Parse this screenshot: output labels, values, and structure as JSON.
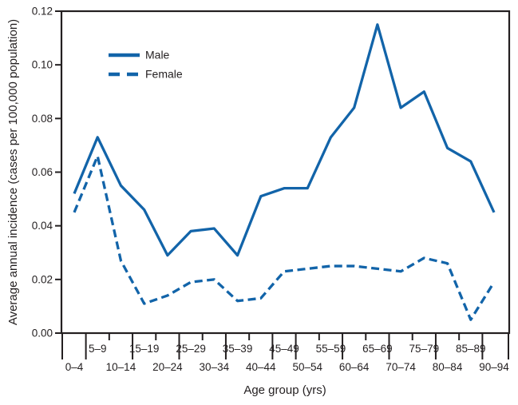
{
  "chart_data": {
    "type": "line",
    "title": "",
    "xlabel": "Age group (yrs)",
    "ylabel": "Average annual incidence (cases per 100,000 population)",
    "categories": [
      "0–4",
      "5–9",
      "10–14",
      "15–19",
      "20–24",
      "25–29",
      "30–34",
      "35–39",
      "40–44",
      "45–49",
      "50–54",
      "55–59",
      "60–64",
      "65–69",
      "70–74",
      "75–79",
      "80–84",
      "85–89",
      "90–94"
    ],
    "series": [
      {
        "name": "Male",
        "line_style": "solid",
        "values": [
          0.052,
          0.073,
          0.055,
          0.046,
          0.029,
          0.038,
          0.039,
          0.029,
          0.051,
          0.054,
          0.054,
          0.073,
          0.084,
          0.115,
          0.084,
          0.09,
          0.069,
          0.064,
          0.045
        ]
      },
      {
        "name": "Female",
        "line_style": "dashed",
        "values": [
          0.045,
          0.066,
          0.027,
          0.011,
          0.014,
          0.019,
          0.02,
          0.012,
          0.013,
          0.023,
          0.024,
          0.025,
          0.025,
          0.024,
          0.023,
          0.028,
          0.026,
          0.005,
          0.019
        ]
      }
    ],
    "ylim": [
      0,
      0.12
    ],
    "y_ticks": [
      0.0,
      0.02,
      0.04,
      0.06,
      0.08,
      0.1,
      0.12
    ],
    "y_tick_labels": [
      "0.00",
      "0.02",
      "0.04",
      "0.06",
      "0.08",
      "0.10",
      "0.12"
    ],
    "x_label_rows": "alternating (odd groups on upper row, even groups on lower row)",
    "grid": false,
    "legend_position": "upper-left-inside",
    "line_color": "#1264a9",
    "axis_color": "#231f20",
    "background_color": "#ffffff"
  }
}
